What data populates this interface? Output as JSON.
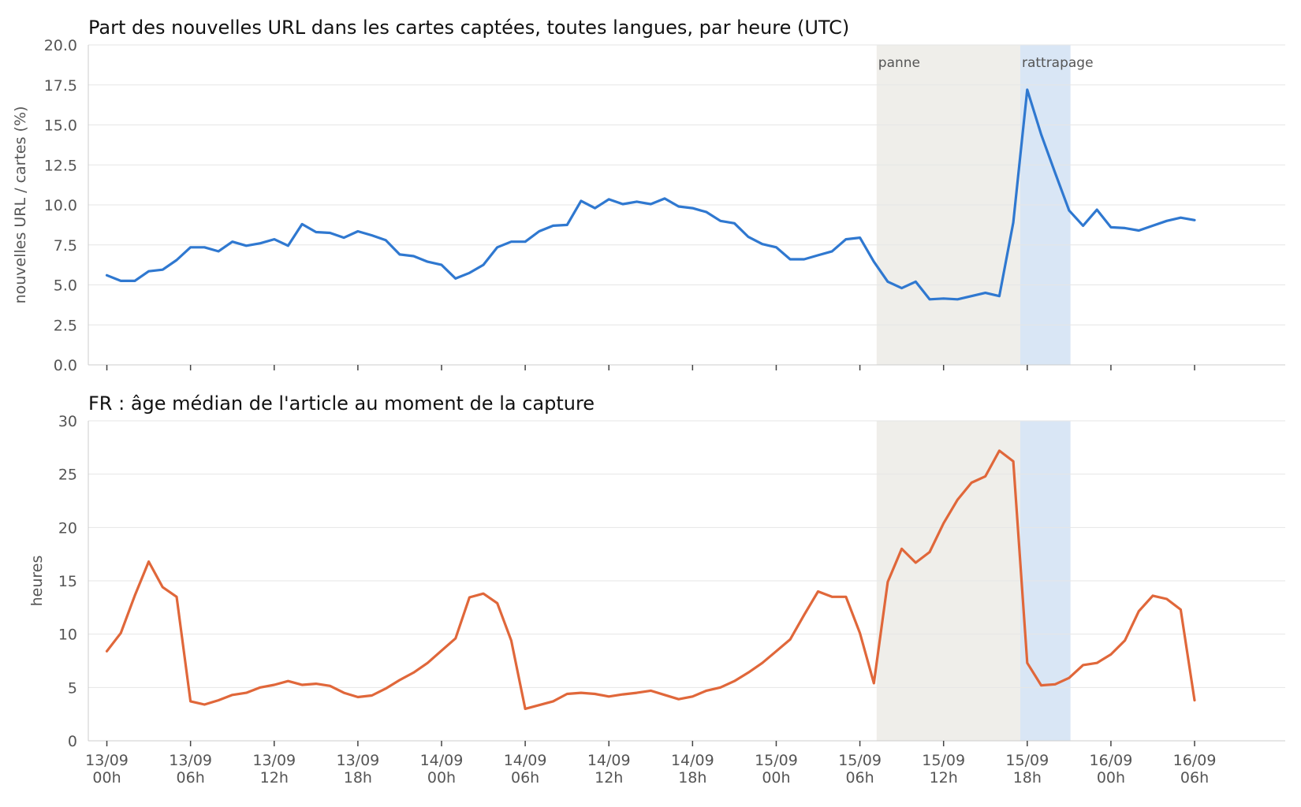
{
  "chart_data": [
    {
      "type": "line",
      "title": "Part des nouvelles URL dans les cartes captées, toutes langues, par heure (UTC)",
      "ylabel": "nouvelles URL / cartes (%)",
      "ylim": [
        0,
        20
      ],
      "yticks": [
        "0.0",
        "2.5",
        "5.0",
        "7.5",
        "10.0",
        "12.5",
        "15.0",
        "17.5",
        "20.0"
      ],
      "xlim": [
        -1.33,
        84.5
      ],
      "x_ticks": [
        {
          "x": 0,
          "label": [
            "13/09",
            "00h"
          ]
        },
        {
          "x": 6,
          "label": [
            "13/09",
            "06h"
          ]
        },
        {
          "x": 12,
          "label": [
            "13/09",
            "12h"
          ]
        },
        {
          "x": 18,
          "label": [
            "13/09",
            "18h"
          ]
        },
        {
          "x": 24,
          "label": [
            "14/09",
            "00h"
          ]
        },
        {
          "x": 30,
          "label": [
            "14/09",
            "06h"
          ]
        },
        {
          "x": 36,
          "label": [
            "14/09",
            "12h"
          ]
        },
        {
          "x": 42,
          "label": [
            "14/09",
            "18h"
          ]
        },
        {
          "x": 48,
          "label": [
            "15/09",
            "00h"
          ]
        },
        {
          "x": 54,
          "label": [
            "15/09",
            "06h"
          ]
        },
        {
          "x": 60,
          "label": [
            "15/09",
            "12h"
          ]
        },
        {
          "x": 66,
          "label": [
            "15/09",
            "18h"
          ]
        },
        {
          "x": 72,
          "label": [
            "16/09",
            "00h"
          ]
        },
        {
          "x": 78,
          "label": [
            "16/09",
            "06h"
          ]
        }
      ],
      "bands": [
        {
          "label": "panne",
          "x0": 55.2,
          "x1": 65.5,
          "color": "#efeeea"
        },
        {
          "label": "rattrapage",
          "x0": 65.5,
          "x1": 69.1,
          "color": "#d9e6f5"
        }
      ],
      "series": [
        {
          "color": "#2f78d0",
          "x": [
            0,
            1,
            2,
            3,
            4,
            5,
            6,
            7,
            8,
            9,
            10,
            11,
            12,
            13,
            14,
            15,
            16,
            17,
            18,
            19,
            20,
            21,
            22,
            23,
            24,
            25,
            26,
            27,
            28,
            29,
            30,
            31,
            32,
            33,
            34,
            35,
            36,
            37,
            38,
            39,
            40,
            41,
            42,
            43,
            44,
            45,
            46,
            47,
            48,
            49,
            50,
            51,
            52,
            53,
            54,
            55,
            56,
            57,
            58,
            59,
            60,
            61,
            62,
            63,
            64,
            65,
            66,
            67,
            68,
            69,
            70,
            71,
            72,
            73,
            74,
            75,
            76,
            77,
            78
          ],
          "values": [
            5.6,
            5.25,
            5.25,
            5.85,
            5.95,
            6.55,
            7.35,
            7.35,
            7.1,
            7.7,
            7.45,
            7.6,
            7.85,
            7.45,
            8.8,
            8.3,
            8.25,
            7.95,
            8.35,
            8.1,
            7.8,
            6.9,
            6.8,
            6.45,
            6.25,
            5.4,
            5.75,
            6.25,
            7.35,
            7.7,
            7.7,
            8.35,
            8.7,
            8.75,
            10.25,
            9.8,
            10.35,
            10.05,
            10.2,
            10.05,
            10.4,
            9.9,
            9.8,
            9.55,
            9.0,
            8.85,
            8.0,
            7.55,
            7.35,
            6.6,
            6.6,
            6.85,
            7.1,
            7.85,
            7.95,
            6.45,
            5.2,
            4.8,
            5.2,
            4.1,
            4.15,
            4.1,
            4.3,
            4.5,
            4.3,
            8.9,
            17.2,
            14.4,
            12.0,
            9.65,
            8.7,
            9.7,
            8.6,
            8.55,
            8.4,
            8.7,
            9.0,
            9.2,
            9.05
          ]
        }
      ]
    },
    {
      "type": "line",
      "title": "FR : âge médian de l'article au moment de la capture",
      "ylabel": "heures",
      "ylim": [
        0,
        30
      ],
      "yticks": [
        "0",
        "5",
        "10",
        "15",
        "20",
        "25",
        "30"
      ],
      "xlim": [
        -1.33,
        84.5
      ],
      "x_ticks": [
        {
          "x": 0,
          "label": [
            "13/09",
            "00h"
          ]
        },
        {
          "x": 6,
          "label": [
            "13/09",
            "06h"
          ]
        },
        {
          "x": 12,
          "label": [
            "13/09",
            "12h"
          ]
        },
        {
          "x": 18,
          "label": [
            "13/09",
            "18h"
          ]
        },
        {
          "x": 24,
          "label": [
            "14/09",
            "00h"
          ]
        },
        {
          "x": 30,
          "label": [
            "14/09",
            "06h"
          ]
        },
        {
          "x": 36,
          "label": [
            "14/09",
            "12h"
          ]
        },
        {
          "x": 42,
          "label": [
            "14/09",
            "18h"
          ]
        },
        {
          "x": 48,
          "label": [
            "15/09",
            "00h"
          ]
        },
        {
          "x": 54,
          "label": [
            "15/09",
            "06h"
          ]
        },
        {
          "x": 60,
          "label": [
            "15/09",
            "12h"
          ]
        },
        {
          "x": 66,
          "label": [
            "15/09",
            "18h"
          ]
        },
        {
          "x": 72,
          "label": [
            "16/09",
            "00h"
          ]
        },
        {
          "x": 78,
          "label": [
            "16/09",
            "06h"
          ]
        }
      ],
      "bands": [
        {
          "label": "",
          "x0": 55.2,
          "x1": 65.5,
          "color": "#efeeea"
        },
        {
          "label": "",
          "x0": 65.5,
          "x1": 69.1,
          "color": "#d9e6f5"
        }
      ],
      "series": [
        {
          "color": "#e0673a",
          "x": [
            0,
            1,
            2,
            3,
            4,
            5,
            6,
            7,
            8,
            9,
            10,
            11,
            12,
            13,
            14,
            15,
            16,
            17,
            18,
            19,
            20,
            21,
            22,
            23,
            24,
            25,
            26,
            27,
            28,
            29,
            30,
            31,
            32,
            33,
            34,
            35,
            36,
            37,
            38,
            39,
            40,
            41,
            42,
            43,
            44,
            45,
            46,
            47,
            48,
            49,
            50,
            51,
            52,
            53,
            54,
            55,
            56,
            57,
            58,
            59,
            60,
            61,
            62,
            63,
            64,
            65,
            66,
            67,
            68,
            69,
            70,
            71,
            72,
            73,
            74,
            75,
            76,
            77,
            78
          ],
          "values": [
            8.4,
            10.1,
            13.6,
            16.8,
            14.4,
            13.5,
            3.7,
            3.4,
            3.8,
            4.3,
            4.5,
            5.0,
            5.25,
            5.6,
            5.25,
            5.35,
            5.15,
            4.5,
            4.1,
            4.25,
            4.9,
            5.7,
            6.4,
            7.3,
            8.45,
            9.6,
            13.45,
            13.8,
            12.9,
            9.4,
            3.0,
            3.35,
            3.7,
            4.4,
            4.5,
            4.4,
            4.15,
            4.35,
            4.5,
            4.7,
            4.3,
            3.9,
            4.15,
            4.7,
            5.0,
            5.6,
            6.4,
            7.3,
            8.4,
            9.5,
            11.8,
            14.0,
            13.5,
            13.5,
            10.1,
            5.4,
            14.9,
            18.0,
            16.7,
            17.7,
            20.4,
            22.6,
            24.2,
            24.8,
            27.2,
            26.2,
            7.3,
            5.2,
            5.3,
            5.9,
            7.1,
            7.3,
            8.1,
            9.4,
            12.15,
            13.6,
            13.3,
            12.3,
            3.8
          ]
        }
      ]
    }
  ]
}
